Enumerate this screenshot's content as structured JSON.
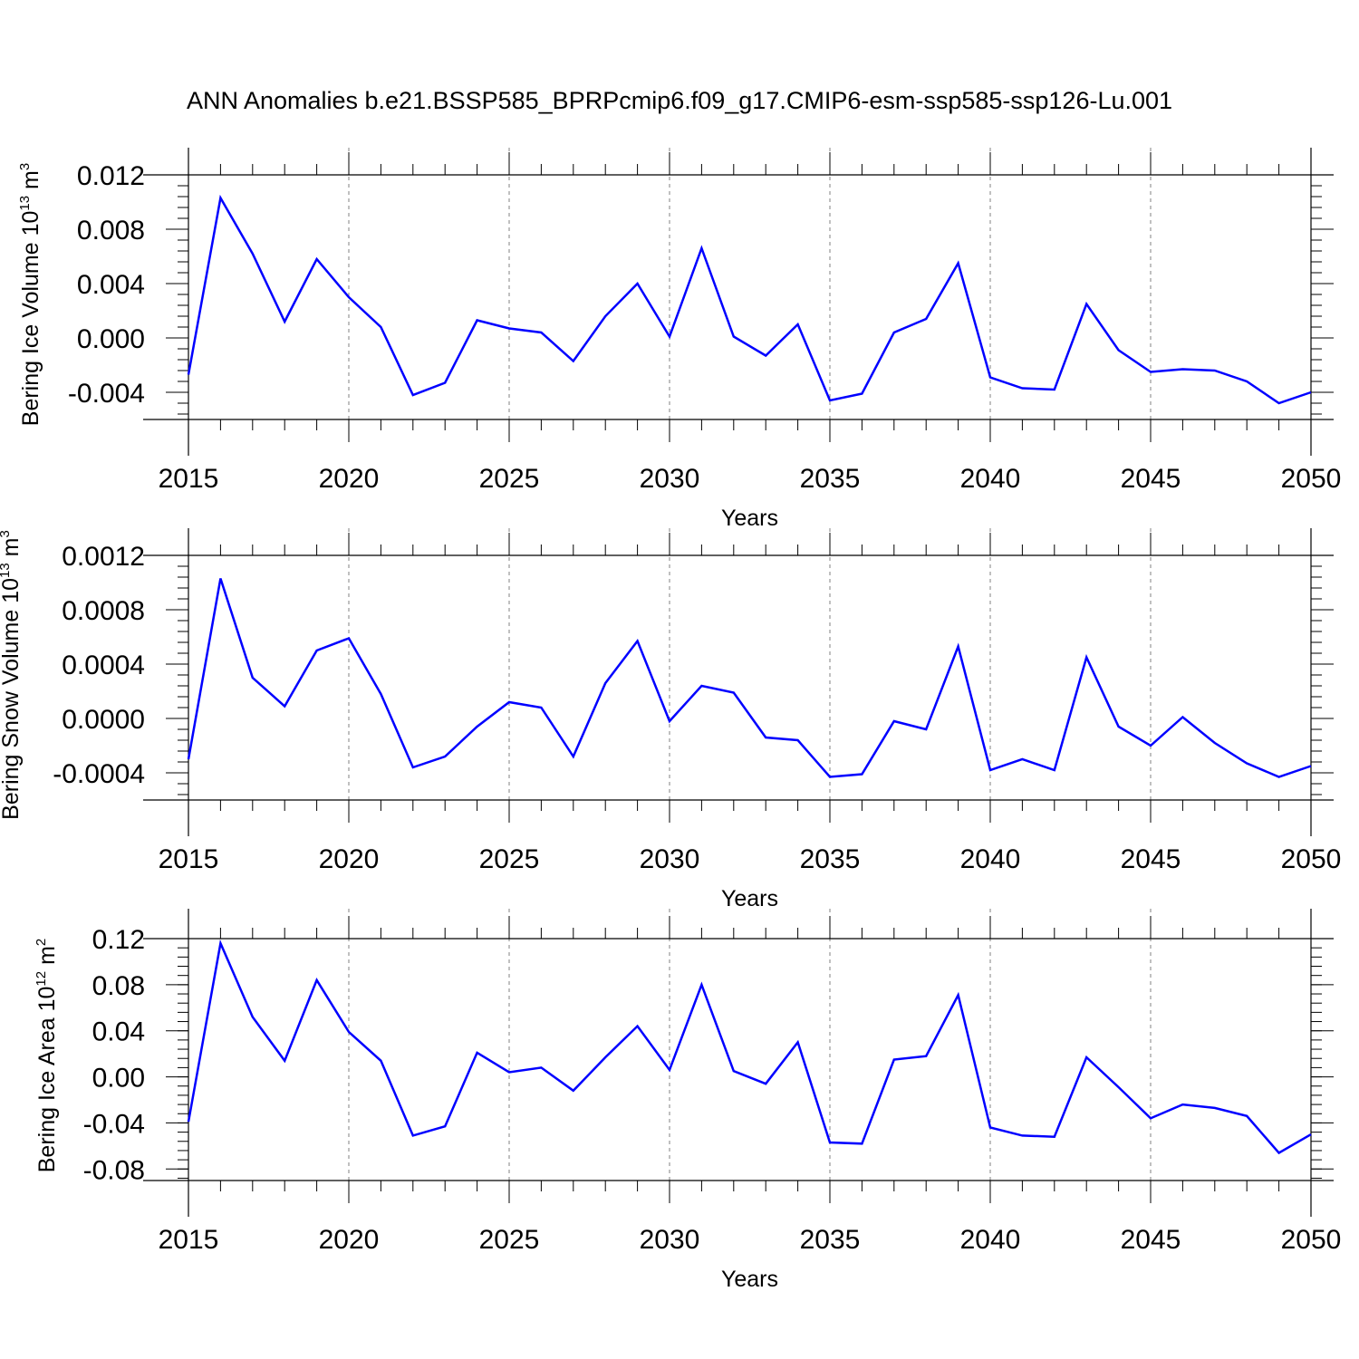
{
  "title": "ANN Anomalies b.e21.BSSP585_BPRPcmip6.f09_g17.CMIP6-esm-ssp585-ssp126-Lu.001",
  "colors": {
    "series": "#0000ff",
    "axis": "#000000",
    "grid": "#808080"
  },
  "chart_data": [
    {
      "type": "line",
      "ylabel_main": "Bering Ice Volume 10",
      "ylabel_exp": "13",
      "ylabel_unit": " m",
      "ylabel_unit_exp": "3",
      "xlabel": "Years",
      "xlim": [
        2015,
        2050
      ],
      "ylim": [
        -0.006,
        0.0118
      ],
      "yticks": [
        0.012,
        0.008,
        0.004,
        0.0,
        -0.004
      ],
      "ytick_labels": [
        "0.012",
        "0.008",
        "0.004",
        "0.000",
        "-0.004"
      ],
      "xticks": [
        2015,
        2020,
        2025,
        2030,
        2035,
        2040,
        2045,
        2050
      ],
      "xtick_labels": [
        "2015",
        "2020",
        "2025",
        "2030",
        "2035",
        "2040",
        "2045",
        "2050"
      ],
      "x": [
        2015,
        2016,
        2017,
        2018,
        2019,
        2020,
        2021,
        2022,
        2023,
        2024,
        2025,
        2026,
        2027,
        2028,
        2029,
        2030,
        2031,
        2032,
        2033,
        2034,
        2035,
        2036,
        2037,
        2038,
        2039,
        2040,
        2041,
        2042,
        2043,
        2044,
        2045,
        2046,
        2047,
        2048,
        2049,
        2050
      ],
      "series": [
        {
          "name": "Bering Ice Volume",
          "values": [
            -0.0027,
            0.0103,
            0.0062,
            0.0012,
            0.0058,
            0.003,
            0.0008,
            -0.0042,
            -0.0033,
            0.0013,
            0.0007,
            0.0004,
            -0.0017,
            0.0016,
            0.004,
            0.0001,
            0.0066,
            0.0001,
            -0.0013,
            0.001,
            -0.0046,
            -0.0041,
            0.0004,
            0.0014,
            0.0055,
            -0.0029,
            -0.0037,
            -0.0038,
            0.0025,
            -0.0009,
            -0.0025,
            -0.0023,
            -0.0024,
            -0.0032,
            -0.0048,
            -0.004
          ]
        }
      ]
    },
    {
      "type": "line",
      "ylabel_main": "Bering Snow Volume 10",
      "ylabel_exp": "13",
      "ylabel_unit": " m",
      "ylabel_unit_exp": "3",
      "xlabel": "Years",
      "xlim": [
        2015,
        2050
      ],
      "ylim": [
        -0.0006,
        0.00118
      ],
      "yticks": [
        0.0012,
        0.0008,
        0.0004,
        0.0,
        -0.0004
      ],
      "ytick_labels": [
        "0.0012",
        "0.0008",
        "0.0004",
        "0.0000",
        "-0.0004"
      ],
      "xticks": [
        2015,
        2020,
        2025,
        2030,
        2035,
        2040,
        2045,
        2050
      ],
      "xtick_labels": [
        "2015",
        "2020",
        "2025",
        "2030",
        "2035",
        "2040",
        "2045",
        "2050"
      ],
      "x": [
        2015,
        2016,
        2017,
        2018,
        2019,
        2020,
        2021,
        2022,
        2023,
        2024,
        2025,
        2026,
        2027,
        2028,
        2029,
        2030,
        2031,
        2032,
        2033,
        2034,
        2035,
        2036,
        2037,
        2038,
        2039,
        2040,
        2041,
        2042,
        2043,
        2044,
        2045,
        2046,
        2047,
        2048,
        2049,
        2050
      ],
      "series": [
        {
          "name": "Bering Snow Volume",
          "values": [
            -0.0003,
            0.00103,
            0.0003,
            9e-05,
            0.0005,
            0.00059,
            0.00018,
            -0.00036,
            -0.00028,
            -6e-05,
            0.00012,
            8e-05,
            -0.00028,
            0.00026,
            0.00057,
            -2e-05,
            0.00024,
            0.00019,
            -0.00014,
            -0.00016,
            -0.00043,
            -0.00041,
            -2e-05,
            -8e-05,
            0.00053,
            -0.00038,
            -0.0003,
            -0.00038,
            0.00045,
            -6e-05,
            -0.0002,
            1e-05,
            -0.00018,
            -0.00033,
            -0.00043,
            -0.00035
          ]
        }
      ]
    },
    {
      "type": "line",
      "ylabel_main": "Bering Ice Area 10",
      "ylabel_exp": "12",
      "ylabel_unit": " m",
      "ylabel_unit_exp": "2",
      "xlabel": "Years",
      "xlim": [
        2015,
        2050
      ],
      "ylim": [
        -0.09,
        0.12
      ],
      "yticks": [
        0.12,
        0.08,
        0.04,
        0.0,
        -0.04,
        -0.08
      ],
      "ytick_labels": [
        "0.12",
        "0.08",
        "0.04",
        "0.00",
        "-0.04",
        "-0.08"
      ],
      "xticks": [
        2015,
        2020,
        2025,
        2030,
        2035,
        2040,
        2045,
        2050
      ],
      "xtick_labels": [
        "2015",
        "2020",
        "2025",
        "2030",
        "2035",
        "2040",
        "2045",
        "2050"
      ],
      "x": [
        2015,
        2016,
        2017,
        2018,
        2019,
        2020,
        2021,
        2022,
        2023,
        2024,
        2025,
        2026,
        2027,
        2028,
        2029,
        2030,
        2031,
        2032,
        2033,
        2034,
        2035,
        2036,
        2037,
        2038,
        2039,
        2040,
        2041,
        2042,
        2043,
        2044,
        2045,
        2046,
        2047,
        2048,
        2049,
        2050
      ],
      "series": [
        {
          "name": "Bering Ice Area",
          "values": [
            -0.039,
            0.116,
            0.052,
            0.014,
            0.084,
            0.039,
            0.014,
            -0.051,
            -0.043,
            0.021,
            0.004,
            0.008,
            -0.012,
            0.017,
            0.044,
            0.006,
            0.08,
            0.005,
            -0.006,
            0.03,
            -0.057,
            -0.058,
            0.015,
            0.018,
            0.071,
            -0.044,
            -0.051,
            -0.052,
            0.017,
            -0.009,
            -0.036,
            -0.024,
            -0.027,
            -0.034,
            -0.066,
            -0.05
          ]
        }
      ]
    }
  ]
}
